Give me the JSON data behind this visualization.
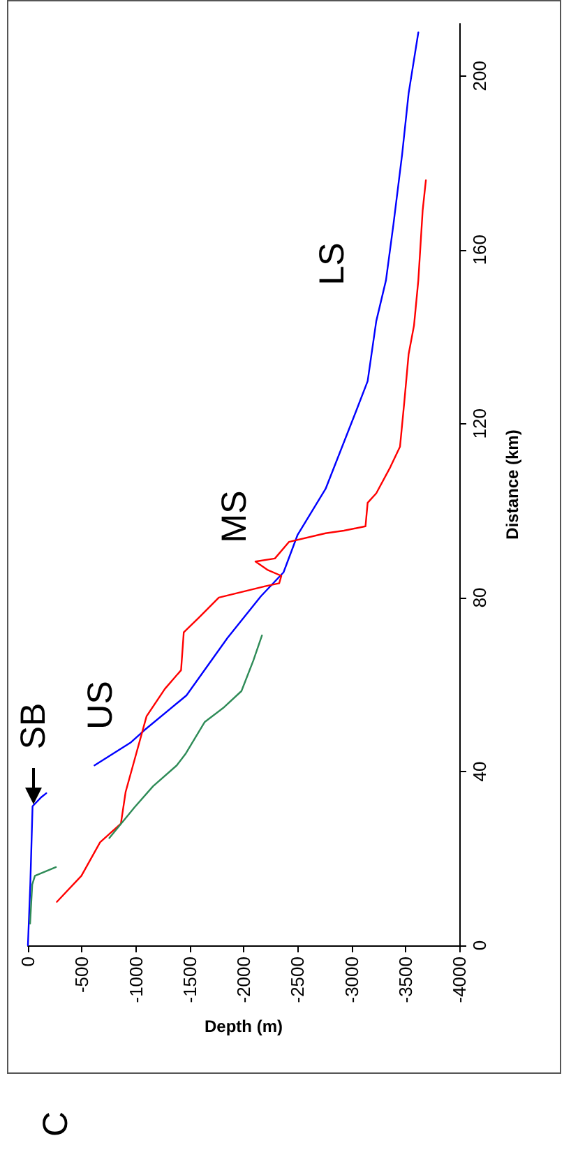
{
  "chart_data": {
    "type": "line",
    "xlabel": "Depth (m)",
    "ylabel": "Distance (km)",
    "xlim": [
      0,
      -4000
    ],
    "xticks": [
      0,
      -500,
      -1000,
      -1500,
      -2000,
      -2500,
      -3000,
      -3500,
      -4000
    ],
    "ylim": [
      0,
      212
    ],
    "yticks": [
      0,
      40,
      80,
      120,
      160,
      200
    ],
    "grid": false,
    "marker": "none",
    "line_style": "solid",
    "series": [
      {
        "color": "#0000ff",
        "x": [
          0,
          -22,
          -43,
          -120,
          -170,
          null,
          -617,
          -950,
          -1080,
          -1470,
          -1850,
          -2160,
          -2370,
          -2500,
          -2760,
          -3040,
          -3150,
          -3230,
          -3320,
          -3390,
          -3470,
          -3530,
          -3620
        ],
        "values": [
          0,
          14,
          32,
          34,
          35,
          null,
          41.4,
          46.6,
          49.5,
          57.5,
          70.7,
          80.3,
          85.8,
          94.4,
          105,
          122.7,
          129.8,
          143.6,
          153,
          166,
          182,
          196,
          210
        ]
      },
      {
        "color": "#ff0000",
        "x": [
          -268,
          -496,
          -669,
          -862,
          -906,
          -992,
          -1100,
          -1270,
          -1420,
          -1445,
          -1590,
          -1770,
          -2200,
          -2330,
          -2350,
          -2220,
          -2110,
          -2290,
          -2420,
          -2760,
          -2930,
          -3130,
          -3150,
          -3230,
          -3360,
          -3450,
          -3490,
          -3530,
          -3580,
          -3620,
          -3660,
          -3690
        ],
        "values": [
          10,
          16,
          23.7,
          28,
          35.3,
          43,
          52.7,
          59,
          63.3,
          72,
          75.5,
          80,
          82.6,
          83.3,
          85,
          86.4,
          88.3,
          89,
          92.8,
          94.8,
          95.4,
          96.4,
          101.8,
          104,
          110,
          114.7,
          125,
          136,
          142.6,
          153,
          169,
          176
        ]
      },
      {
        "color": "#2e8b57",
        "x": [
          -20,
          -40,
          -65,
          -260,
          null,
          -755,
          -990,
          -1160,
          -1380,
          -1460,
          -1640,
          -1810,
          -1980,
          -2090,
          -2170
        ],
        "values": [
          5,
          14,
          16,
          18,
          null,
          24.7,
          31.8,
          36.6,
          41.4,
          44,
          51.4,
          54.6,
          58.5,
          65.5,
          71.3
        ]
      }
    ],
    "annotations": [
      "SB",
      "US",
      "MS",
      "LS",
      "C"
    ]
  }
}
